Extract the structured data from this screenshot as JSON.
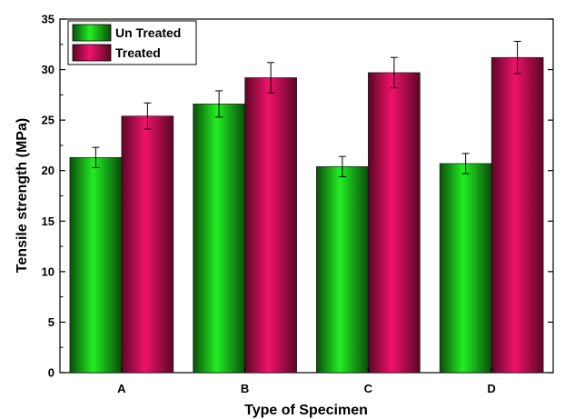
{
  "chart_data": {
    "type": "bar",
    "categories": [
      "A",
      "B",
      "C",
      "D"
    ],
    "series": [
      {
        "name": "Un Treated",
        "values": [
          21.3,
          26.6,
          20.4,
          20.7
        ],
        "errors": [
          1.0,
          1.3,
          1.0,
          1.0
        ],
        "color": "#22dd22"
      },
      {
        "name": "Treated",
        "values": [
          25.4,
          29.2,
          29.7,
          31.2
        ],
        "errors": [
          1.3,
          1.5,
          1.5,
          1.6
        ],
        "color": "#e8115e"
      }
    ],
    "title": "",
    "xlabel": "Type of Specimen",
    "ylabel": "Tensile strength (MPa)",
    "ylim": [
      0,
      35
    ],
    "yticks": [
      "0",
      "5",
      "10",
      "15",
      "20",
      "25",
      "30",
      "35"
    ],
    "grid": false,
    "legend_position": "top-left"
  }
}
